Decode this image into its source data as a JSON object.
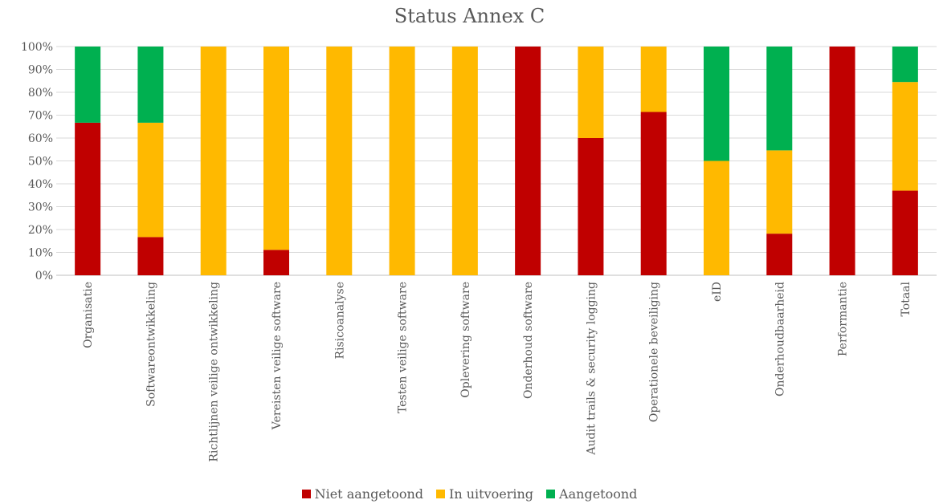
{
  "chart_data": {
    "type": "bar",
    "stacked": true,
    "percent": true,
    "title": "Status Annex C",
    "categories": [
      "Organisatie",
      "Softwareontwikkeling",
      "Richtlijnen veilige ontwikkeling",
      "Vereisten veilige software",
      "Risicoanalyse",
      "Testen veilige software",
      "Oplevering software",
      "Onderhoud software",
      "Audit trails & security logging",
      "Operationele beveiliging",
      "eID",
      "Onderhoudbaarheid",
      "Performantie",
      "Totaal"
    ],
    "series": [
      {
        "name": "Niet aangetoond",
        "color": "#C00000",
        "values": [
          66.7,
          16.7,
          0,
          11.1,
          0,
          0,
          0,
          100,
          60,
          71.4,
          0,
          18.2,
          100,
          37
        ]
      },
      {
        "name": "In uitvoering",
        "color": "#FFB900",
        "values": [
          0,
          50,
          100,
          88.9,
          100,
          100,
          100,
          0,
          40,
          28.6,
          50,
          36.4,
          0,
          47.5
        ]
      },
      {
        "name": "Aangetoond",
        "color": "#00B050",
        "values": [
          33.3,
          33.3,
          0,
          0,
          0,
          0,
          0,
          0,
          0,
          0,
          50,
          45.4,
          0,
          15.5
        ]
      }
    ],
    "ylim": [
      0,
      100
    ],
    "yticks": [
      "0%",
      "10%",
      "20%",
      "30%",
      "40%",
      "50%",
      "60%",
      "70%",
      "80%",
      "90%",
      "100%"
    ],
    "grid": true,
    "legend": "bottom"
  }
}
